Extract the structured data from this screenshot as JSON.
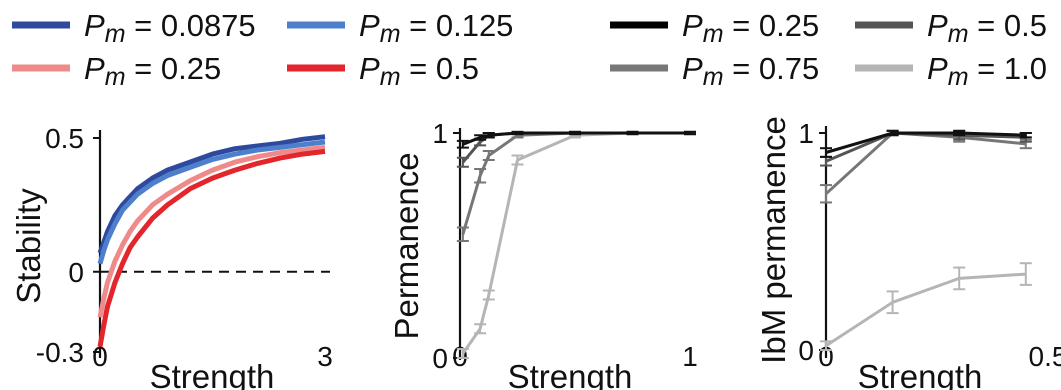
{
  "legend": {
    "items": [
      {
        "sym": "P",
        "sub": "m",
        "text": " = 0.0875",
        "color": "#2e4a9e"
      },
      {
        "sym": "P",
        "sub": "m",
        "text": " = 0.125",
        "color": "#4d7fcc"
      },
      {
        "sym": "P",
        "sub": "m",
        "text": " = 0.25",
        "color": "#000000"
      },
      {
        "sym": "P",
        "sub": "m",
        "text": " = 0.5",
        "color": "#555555"
      },
      {
        "sym": "P",
        "sub": "m",
        "text": " = 0.25",
        "color": "#ef8a8a"
      },
      {
        "sym": "P",
        "sub": "m",
        "text": " = 0.5",
        "color": "#e2262b"
      },
      {
        "sym": "P",
        "sub": "m",
        "text": " = 0.75",
        "color": "#777777"
      },
      {
        "sym": "P",
        "sub": "m",
        "text": " = 1.0",
        "color": "#b5b5b5"
      }
    ]
  },
  "chart_data": [
    {
      "type": "line",
      "xlabel": "Strength",
      "ylabel": "Stability",
      "xlim": [
        0,
        3
      ],
      "ylim": [
        -0.3,
        0.5
      ],
      "xticks": [
        "0",
        "3"
      ],
      "yticks": [
        {
          "value": 0.5,
          "label": "0.5"
        },
        {
          "value": 0,
          "label": "0"
        },
        {
          "value": -0.3,
          "label": "-0.3"
        }
      ],
      "reference_line": {
        "y": 0,
        "style": "dashed"
      },
      "x": [
        0,
        0.05,
        0.1,
        0.2,
        0.3,
        0.4,
        0.5,
        0.7,
        0.9,
        1.2,
        1.5,
        1.8,
        2.1,
        2.4,
        2.7,
        3.0
      ],
      "series": [
        {
          "name": "P_m = 0.0875",
          "color": "#2e4a9e",
          "values": [
            0.07,
            0.11,
            0.15,
            0.21,
            0.25,
            0.28,
            0.31,
            0.35,
            0.38,
            0.41,
            0.44,
            0.46,
            0.47,
            0.48,
            0.495,
            0.505
          ]
        },
        {
          "name": "P_m = 0.125",
          "color": "#4d7fcc",
          "values": [
            0.03,
            0.08,
            0.12,
            0.18,
            0.23,
            0.26,
            0.29,
            0.33,
            0.36,
            0.39,
            0.42,
            0.44,
            0.455,
            0.465,
            0.475,
            0.485
          ]
        },
        {
          "name": "P_m = 0.25",
          "color": "#ef8a8a",
          "values": [
            -0.17,
            -0.1,
            -0.04,
            0.04,
            0.1,
            0.15,
            0.19,
            0.25,
            0.29,
            0.34,
            0.38,
            0.41,
            0.43,
            0.445,
            0.455,
            0.465
          ]
        },
        {
          "name": "P_m = 0.5",
          "color": "#e2262b",
          "values": [
            -0.28,
            -0.2,
            -0.13,
            -0.04,
            0.03,
            0.09,
            0.13,
            0.2,
            0.25,
            0.31,
            0.35,
            0.38,
            0.405,
            0.425,
            0.44,
            0.45
          ]
        }
      ]
    },
    {
      "type": "line",
      "xlabel": "Strength",
      "ylabel": "Permanence",
      "xlim": [
        0,
        1
      ],
      "ylim": [
        0,
        1
      ],
      "xticks": [
        {
          "value": 0,
          "label": "0"
        },
        {
          "value": 1,
          "label": "1"
        }
      ],
      "yticks": [
        {
          "value": 0,
          "label": "0"
        },
        {
          "value": 1,
          "label": "1"
        }
      ],
      "series": [
        {
          "name": "P_m = 0.25",
          "color": "#111111",
          "x": [
            0.0125,
            0.0875,
            0.125,
            0.25,
            0.5,
            0.75,
            1.0
          ],
          "values": [
            0.95,
            0.98,
            0.99,
            1.0,
            1.0,
            1.0,
            1.0
          ],
          "err": [
            0.015,
            0.01,
            0.01,
            0.005,
            0.005,
            0.005,
            0.005
          ]
        },
        {
          "name": "P_m = 0.5",
          "color": "#555555",
          "x": [
            0.0125,
            0.0875,
            0.125,
            0.25,
            0.5,
            0.75,
            1.0
          ],
          "values": [
            0.87,
            0.96,
            0.99,
            1.0,
            1.0,
            1.0,
            1.0
          ],
          "err": [
            0.02,
            0.015,
            0.01,
            0.005,
            0.005,
            0.005,
            0.005
          ]
        },
        {
          "name": "P_m = 0.75",
          "color": "#777777",
          "x": [
            0.0125,
            0.0875,
            0.125,
            0.25,
            0.5,
            0.75,
            1.0
          ],
          "values": [
            0.55,
            0.81,
            0.9,
            0.99,
            1.0,
            1.0,
            1.0
          ],
          "err": [
            0.03,
            0.03,
            0.02,
            0.01,
            0.005,
            0.005,
            0.005
          ]
        },
        {
          "name": "P_m = 1.0",
          "color": "#b5b5b5",
          "x": [
            0.0125,
            0.0875,
            0.125,
            0.25,
            0.5,
            0.75,
            1.0
          ],
          "values": [
            0.02,
            0.13,
            0.28,
            0.88,
            0.99,
            1.0,
            1.0
          ],
          "err": [
            0.02,
            0.02,
            0.02,
            0.02,
            0.01,
            0.005,
            0.005
          ]
        }
      ]
    },
    {
      "type": "line",
      "xlabel": "Strength",
      "ylabel": "IbM permanence",
      "xlim": [
        0,
        0.5
      ],
      "ylim": [
        0,
        1
      ],
      "xticks": [
        {
          "value": 0,
          "label": "0"
        },
        {
          "value": 0.5,
          "label": "0.5"
        }
      ],
      "yticks": [
        {
          "value": 0,
          "label": "0"
        },
        {
          "value": 1,
          "label": "1"
        }
      ],
      "series": [
        {
          "name": "P_m = 0.25",
          "color": "#111111",
          "x": [
            0,
            0.15,
            0.3,
            0.45
          ],
          "values": [
            0.91,
            1.0,
            1.0,
            0.99
          ],
          "err": [
            0.02,
            0.01,
            0.01,
            0.01
          ]
        },
        {
          "name": "P_m = 0.5",
          "color": "#555555",
          "x": [
            0,
            0.15,
            0.3,
            0.45
          ],
          "values": [
            0.87,
            1.0,
            0.99,
            0.98
          ],
          "err": [
            0.02,
            0.01,
            0.02,
            0.02
          ]
        },
        {
          "name": "P_m = 0.75",
          "color": "#777777",
          "x": [
            0,
            0.15,
            0.3,
            0.45
          ],
          "values": [
            0.72,
            1.0,
            0.98,
            0.95
          ],
          "err": [
            0.04,
            0.01,
            0.02,
            0.02
          ]
        },
        {
          "name": "P_m = 1.0",
          "color": "#b5b5b5",
          "x": [
            0,
            0.15,
            0.3,
            0.45
          ],
          "values": [
            0.02,
            0.22,
            0.33,
            0.35
          ],
          "err": [
            0.02,
            0.05,
            0.05,
            0.05
          ]
        }
      ]
    }
  ]
}
